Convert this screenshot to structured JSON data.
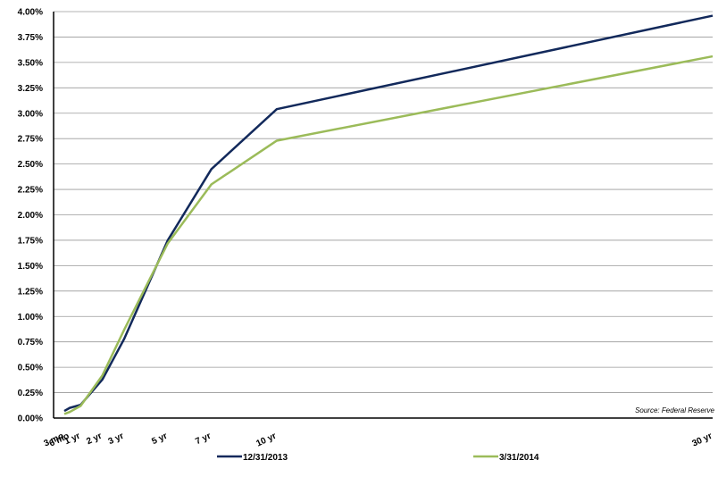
{
  "chart_data": {
    "type": "line",
    "x_labels": [
      "3 mo",
      "6 mo",
      "1 yr",
      "2 yr",
      "3 yr",
      "5 yr",
      "7 yr",
      "10 yr",
      "30 yr"
    ],
    "x": [
      0.25,
      0.5,
      1,
      2,
      3,
      5,
      7,
      10,
      30
    ],
    "y_tick_labels": [
      "0.00%",
      "0.25%",
      "0.50%",
      "0.75%",
      "1.00%",
      "1.25%",
      "1.50%",
      "1.75%",
      "2.00%",
      "2.25%",
      "2.50%",
      "2.75%",
      "3.00%",
      "3.25%",
      "3.50%",
      "3.75%",
      "4.00%"
    ],
    "ylim": [
      0,
      4.0
    ],
    "grid": true,
    "legend_position": "bottom",
    "series": [
      {
        "name": "12/31/2013",
        "color": "#12295b",
        "values": [
          0.07,
          0.1,
          0.13,
          0.38,
          0.78,
          1.75,
          2.45,
          3.04,
          3.96
        ]
      },
      {
        "name": "3/31/2014",
        "color": "#9bbb59",
        "values": [
          0.04,
          0.06,
          0.12,
          0.42,
          0.87,
          1.72,
          2.3,
          2.73,
          3.56
        ]
      }
    ],
    "source": "Source: Federal Reserve"
  }
}
